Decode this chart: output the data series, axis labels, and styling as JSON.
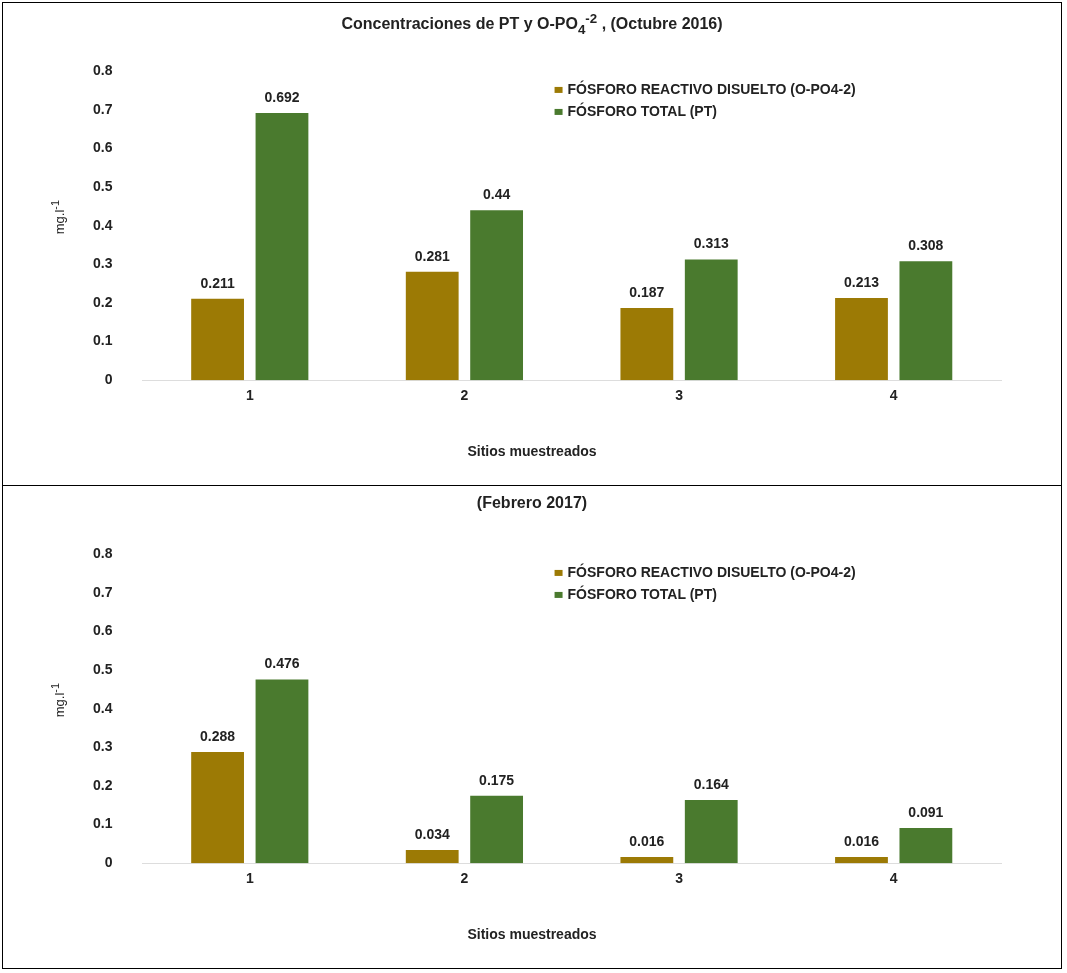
{
  "chart_data": [
    {
      "type": "bar",
      "title": "Concentraciones de PT y O-PO$_{4}$$^{-2}$ , (Octubre 2016)",
      "xlabel": "Sitios muestreados",
      "ylabel": "mg.l$^{-1}$",
      "categories": [
        "1",
        "2",
        "3",
        "4"
      ],
      "series": [
        {
          "name": "FÓSFORO REACTIVO DISUELTO (O-PO4-2)",
          "color": "#9c7a05",
          "values": [
            0.211,
            0.281,
            0.187,
            0.213
          ]
        },
        {
          "name": "FÓSFORO TOTAL (PT)",
          "color": "#4a7a2e",
          "values": [
            0.692,
            0.44,
            0.313,
            0.308
          ]
        }
      ],
      "ylim": [
        0,
        0.8
      ],
      "yticks": [
        {
          "value": 0,
          "label": "0"
        },
        0.1,
        0.2,
        0.3,
        0.4,
        0.5,
        0.6,
        0.7,
        0.8
      ],
      "grid": false,
      "legend": "top right",
      "data_labels": true
    },
    {
      "type": "bar",
      "title": "(Febrero 2017)",
      "xlabel": "Sitios muestreados",
      "ylabel": "mg.l$^{-1}$",
      "categories": [
        "1",
        "2",
        "3",
        "4"
      ],
      "series": [
        {
          "name": "FÓSFORO REACTIVO DISUELTO (O-PO4-2)",
          "color": "#9c7a05",
          "values": [
            0.288,
            0.034,
            0.016,
            0.016
          ]
        },
        {
          "name": "FÓSFORO TOTAL (PT)",
          "color": "#4a7a2e",
          "values": [
            0.476,
            0.175,
            0.164,
            0.091
          ]
        }
      ],
      "ylim": [
        0,
        0.8
      ],
      "yticks": [
        {
          "value": 0,
          "label": "0"
        },
        0.1,
        0.2,
        0.3,
        0.4,
        0.5,
        0.6,
        0.7,
        0.8
      ],
      "grid": false,
      "legend": "top right",
      "data_labels": true
    }
  ]
}
